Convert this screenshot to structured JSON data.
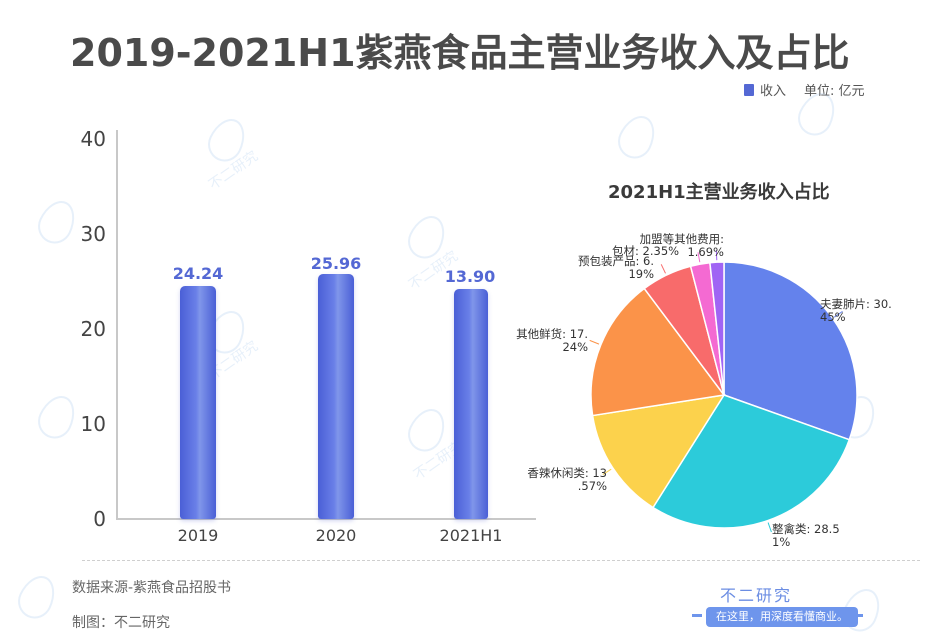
{
  "title": "2019-2021H1紫燕食品主营业务收入及占比",
  "legend": {
    "series_label": "收入",
    "unit": "单位: 亿元",
    "color": "#5468d4"
  },
  "footer": {
    "source": "数据来源-紫燕食品招股书",
    "maker": "制图：不二研究",
    "brand": "不二研究",
    "tagline": "在这里，用深度看懂商业。"
  },
  "watermark_text": "不二研究",
  "chart_data": [
    {
      "type": "bar",
      "title": "2019-2021H1紫燕食品主营业务收入及占比",
      "categories": [
        "2019",
        "2020",
        "2021H1"
      ],
      "series": [
        {
          "name": "收入",
          "values": [
            24.24,
            25.96,
            13.9
          ]
        }
      ],
      "value_labels": [
        "24.24",
        "25.96",
        "13.90"
      ],
      "ylabel": "单位: 亿元",
      "yticks": [
        "0",
        "10",
        "20",
        "30",
        "40"
      ],
      "ylim": [
        0,
        40
      ],
      "grid": false,
      "legend_position": "top-right",
      "bar_color": "#5468d4"
    },
    {
      "type": "pie",
      "title": "2021H1主营业务收入占比",
      "slices": [
        {
          "label": "夫妻肺片",
          "value": 30.45,
          "text_line1": "夫妻肺片: 30.",
          "text_line2": "45%",
          "color": "#6482ec"
        },
        {
          "label": "整禽类",
          "value": 28.51,
          "text_line1": "整禽类: 28.5",
          "text_line2": "1%",
          "color": "#2ccbda"
        },
        {
          "label": "香辣休闲类",
          "value": 13.57,
          "text_line1": "香辣休闲类: 13",
          "text_line2": ".57%",
          "color": "#fcd24c"
        },
        {
          "label": "其他鲜货",
          "value": 17.24,
          "text_line1": "其他鲜货: 17.",
          "text_line2": "24%",
          "color": "#fb9349"
        },
        {
          "label": "预包装产品",
          "value": 6.19,
          "text_line1": "预包装产品: 6.",
          "text_line2": "19%",
          "color": "#f86b6b"
        },
        {
          "label": "包材",
          "value": 2.35,
          "text_line1": "包材: 2.35%",
          "text_line2": "",
          "color": "#f46ad2"
        },
        {
          "label": "加盟等其他费用",
          "value": 1.69,
          "text_line1": "加盟等其他费用:",
          "text_line2": "1.69%",
          "color": "#a064f4"
        }
      ]
    }
  ]
}
